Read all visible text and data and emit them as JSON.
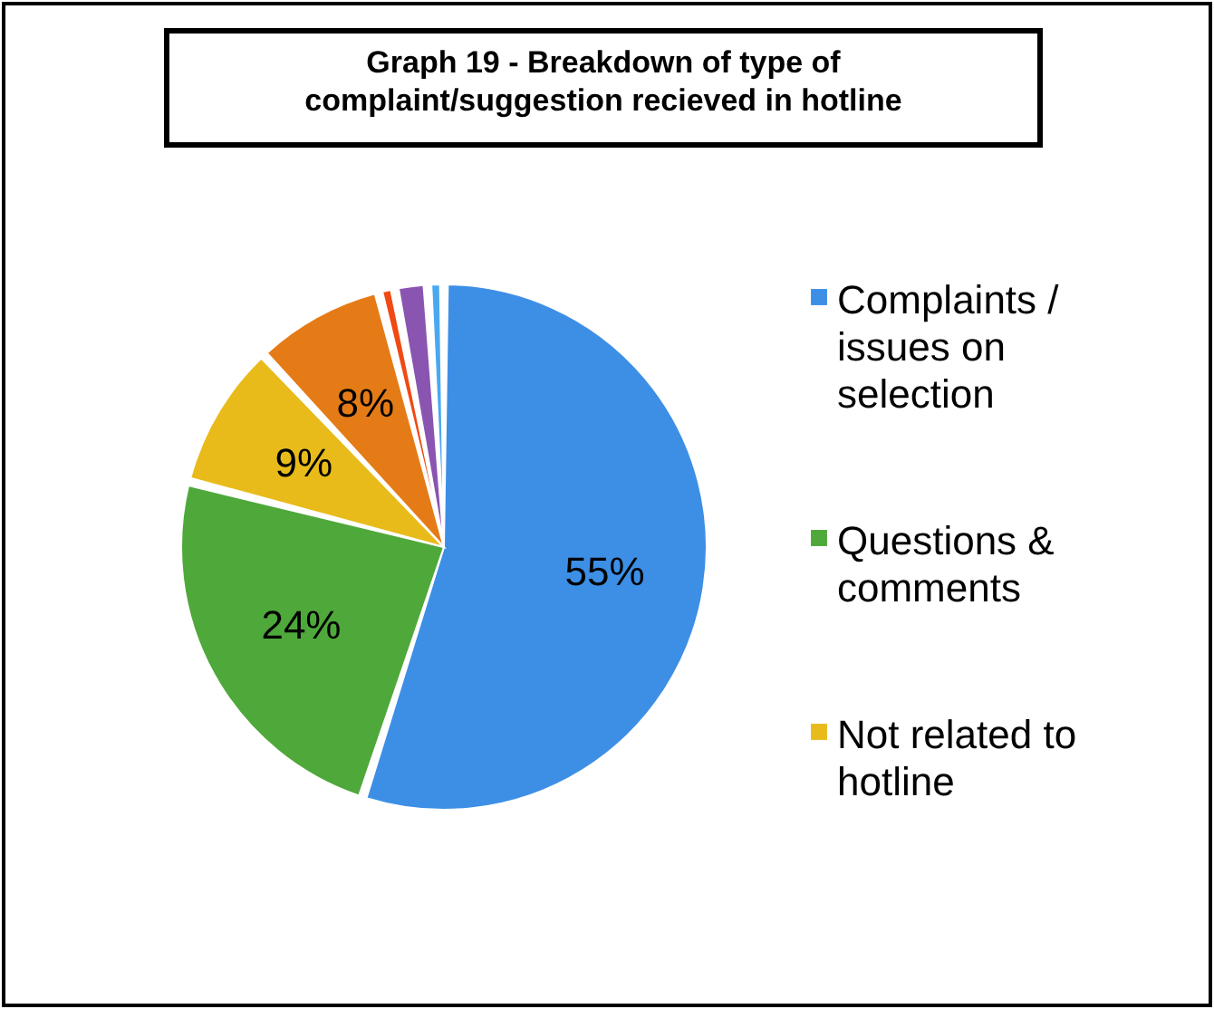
{
  "chart_data": {
    "type": "pie",
    "title": "Graph 19 - Breakdown of type of complaint/suggestion recieved in hotline",
    "categories": [
      "Complaints / issues on selection",
      "Questions & comments",
      "Not related to hotline",
      null,
      null,
      null,
      null
    ],
    "values": [
      55,
      24,
      9,
      8,
      1,
      2,
      1
    ],
    "colors": [
      "#3d8fe6",
      "#4fa83a",
      "#e8bb1a",
      "#e57b16",
      "#f04a14",
      "#8a55b0",
      "#4aa8f0"
    ],
    "value_labels": [
      "55%",
      "24%",
      "9%",
      "8%",
      null,
      null,
      null
    ],
    "legend": "right"
  }
}
